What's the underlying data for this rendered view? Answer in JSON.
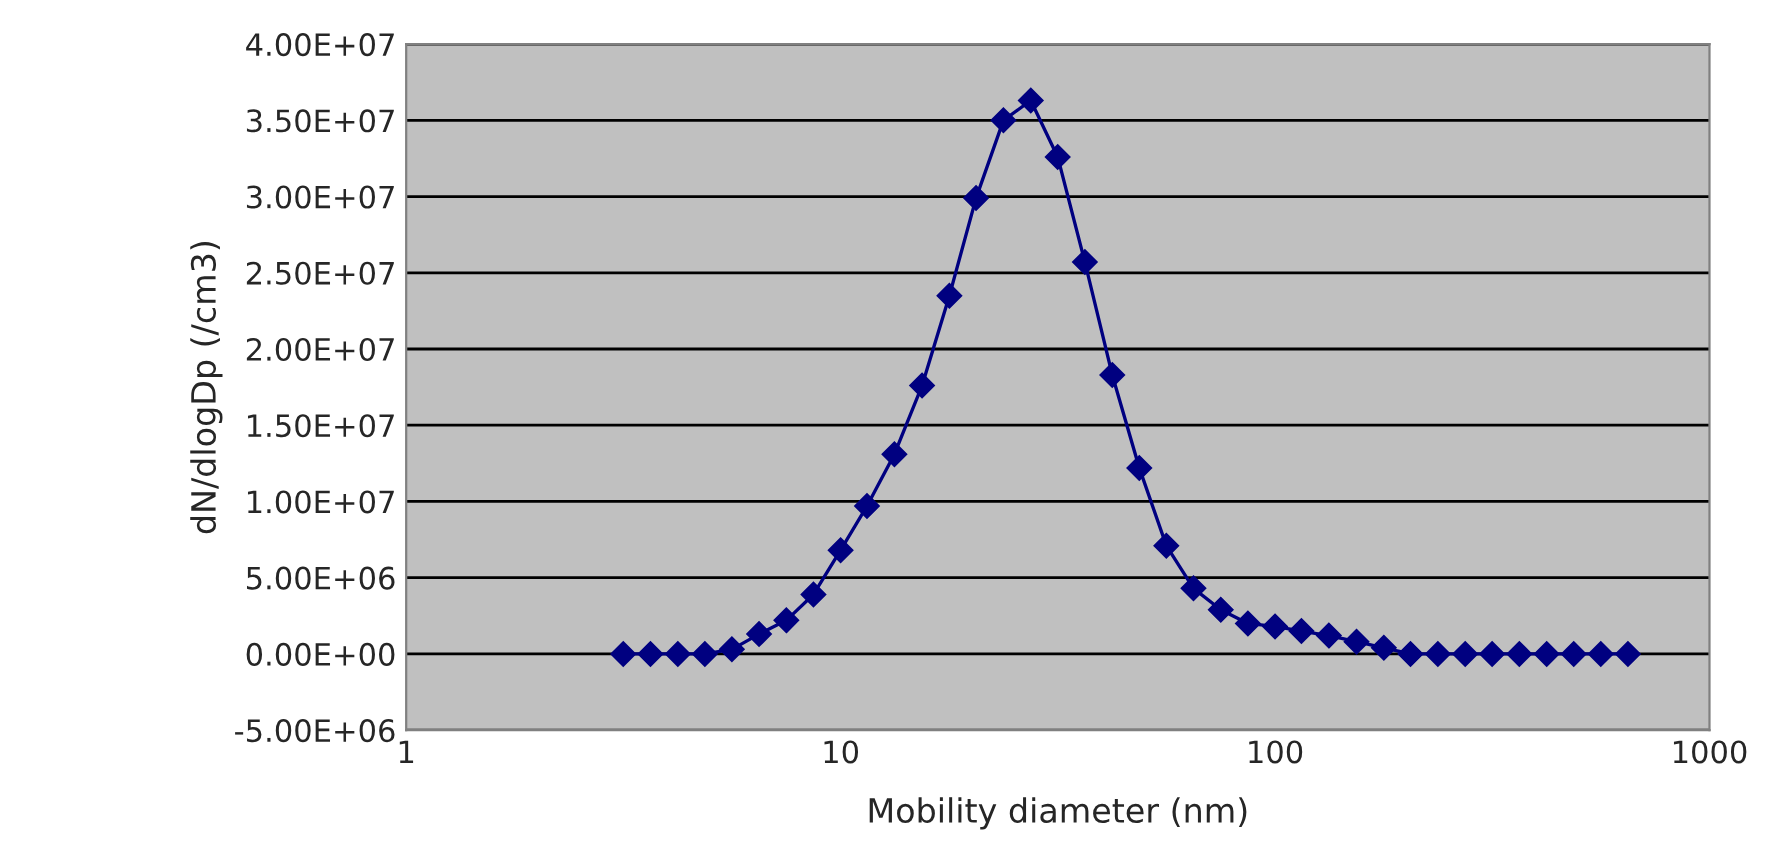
{
  "chart_data": {
    "type": "line",
    "xlabel": "Mobility diameter (nm)",
    "ylabel": "dN/dlogDp (/cm3)",
    "x": [
      3.16,
      3.65,
      4.22,
      4.87,
      5.62,
      6.49,
      7.5,
      8.66,
      10,
      11.5,
      13.3,
      15.4,
      17.8,
      20.5,
      23.7,
      27.4,
      31.6,
      36.5,
      42.2,
      48.7,
      56.2,
      64.9,
      75,
      86.6,
      100,
      115,
      133,
      154,
      178,
      205,
      237,
      274,
      316,
      365,
      422,
      487,
      562,
      649
    ],
    "series": [
      {
        "color": "#000080",
        "values": [
          0,
          0,
          0,
          0,
          300000,
          1300000,
          2200000,
          3900000,
          6800000,
          9700000,
          13100000,
          17600000,
          23500000,
          29900000,
          35000000,
          36300000,
          32600000,
          25700000,
          18300000,
          12200000,
          7100000,
          4300000,
          2900000,
          2000000,
          1800000,
          1500000,
          1200000,
          800000,
          400000,
          0,
          0,
          0,
          0,
          0,
          0,
          0,
          0,
          0
        ]
      }
    ],
    "log": "x",
    "xlim": [
      1,
      1000
    ],
    "xticks": [
      1,
      10,
      100,
      1000
    ],
    "ylim": [
      -5000000,
      40000000
    ],
    "yticks": [
      {
        "value": -5000000,
        "label": "-5.00E+06"
      },
      {
        "value": 0,
        "label": "0.00E+00"
      },
      {
        "value": 5000000,
        "label": "5.00E+06"
      },
      {
        "value": 10000000,
        "label": "1.00E+07"
      },
      {
        "value": 15000000,
        "label": "1.50E+07"
      },
      {
        "value": 20000000,
        "label": "2.00E+07"
      },
      {
        "value": 25000000,
        "label": "2.50E+07"
      },
      {
        "value": 30000000,
        "label": "3.00E+07"
      },
      {
        "value": 35000000,
        "label": "3.50E+07"
      },
      {
        "value": 40000000,
        "label": "4.00E+07"
      }
    ],
    "grid": "y",
    "marker": "diamond",
    "line_style": "solid"
  }
}
